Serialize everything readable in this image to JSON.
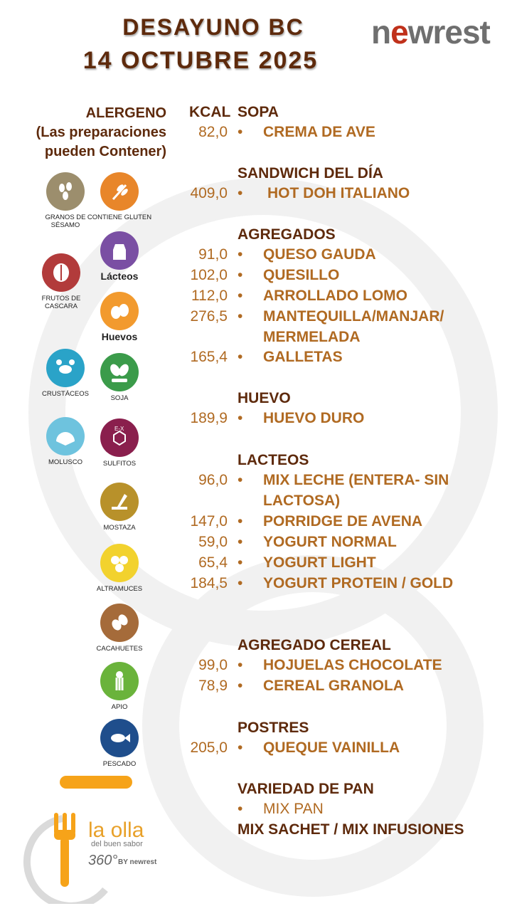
{
  "header": {
    "title_line1": "DESAYUNO  BC",
    "title_line2": "14   OCTUBRE 2025",
    "logo_pre": "n",
    "logo_e": "e",
    "logo_post": "wrest"
  },
  "allergen": {
    "heading1": "ALERGENO",
    "heading2": "(Las preparaciones",
    "heading3": "pueden Contener)",
    "items": [
      {
        "label": "GRANOS DE SÉSAMO",
        "icon": "sesame-icon",
        "color": "#9c8e6d"
      },
      {
        "label": "CONTIENE GLUTEN",
        "icon": "gluten-icon",
        "color": "#e8862a"
      },
      {
        "label": "Lácteos",
        "icon": "milk-icon",
        "color": "#7a4fa3"
      },
      {
        "label": "FRUTOS DE CASCARA",
        "icon": "nuts-icon",
        "color": "#b23b3b"
      },
      {
        "label": "Huevos",
        "icon": "egg-icon",
        "color": "#f29a2e"
      },
      {
        "label": "CRUSTÁCEOS",
        "icon": "crab-icon",
        "color": "#2aa3c8"
      },
      {
        "label": "SOJA",
        "icon": "soy-icon",
        "color": "#3b9b4a"
      },
      {
        "label": "MOLUSCO",
        "icon": "shell-icon",
        "color": "#6ec3de"
      },
      {
        "label": "SULFITOS",
        "icon": "sulfite-icon",
        "color": "#8a1f4d",
        "glyph": "E-X"
      },
      {
        "label": "MOSTAZA",
        "icon": "mustard-icon",
        "color": "#b8912a"
      },
      {
        "label": "ALTRAMUCES",
        "icon": "lupin-icon",
        "color": "#f2d22e"
      },
      {
        "label": "CACAHUETES",
        "icon": "peanut-icon",
        "color": "#a56b3a"
      },
      {
        "label": "APIO",
        "icon": "celery-icon",
        "color": "#6ab33b"
      },
      {
        "label": "PESCADO",
        "icon": "fish-icon",
        "color": "#1f4e8c"
      }
    ]
  },
  "menu": {
    "kcal_header": "KCAL",
    "bullet": "•",
    "sections": [
      {
        "title": "SOPA",
        "items": [
          {
            "kcal": "82,0",
            "name": "CREMA DE AVE"
          }
        ]
      },
      {
        "title": "SANDWICH DEL DÍA",
        "items": [
          {
            "kcal": "409,0",
            "name": "HOT DOH ITALIANO"
          }
        ]
      },
      {
        "title": "AGREGADOS",
        "items": [
          {
            "kcal": "91,0",
            "name": "QUESO  GAUDA"
          },
          {
            "kcal": "102,0",
            "name": "QUESILLO"
          },
          {
            "kcal": "112,0",
            "name": "ARROLLADO LOMO"
          },
          {
            "kcal": "276,5",
            "name": "MANTEQUILLA/MANJAR/ MERMELADA"
          },
          {
            "kcal": "165,4",
            "name": "GALLETAS"
          }
        ]
      },
      {
        "title": "HUEVO",
        "items": [
          {
            "kcal": "189,9",
            "name": "HUEVO DURO"
          }
        ]
      },
      {
        "title": "LACTEOS",
        "items": [
          {
            "kcal": "96,0",
            "name": "MIX LECHE (ENTERA- SIN LACTOSA)"
          },
          {
            "kcal": "147,0",
            "name": "PORRIDGE DE AVENA"
          },
          {
            "kcal": "59,0",
            "name": "YOGURT NORMAL"
          },
          {
            "kcal": "65,4",
            "name": "YOGURT LIGHT"
          },
          {
            "kcal": "184,5",
            "name": "YOGURT PROTEIN / GOLD"
          }
        ]
      },
      {
        "title": "AGREGADO CEREAL",
        "items": [
          {
            "kcal": "99,0",
            "name": "HOJUELAS CHOCOLATE"
          },
          {
            "kcal": "78,9",
            "name": "CEREAL  GRANOLA"
          }
        ]
      },
      {
        "title": "POSTRES",
        "items": [
          {
            "kcal": "205,0",
            "name": "QUEQUE VAINILLA"
          }
        ]
      },
      {
        "title": "VARIEDAD DE PAN",
        "items": [
          {
            "kcal": "",
            "name": "MIX PAN"
          }
        ]
      }
    ],
    "footer_line": "MIX SACHET / MIX INFUSIONES"
  },
  "brand": {
    "line1": "la olla",
    "line2": "del buen sabor",
    "line3": "360°",
    "line4": "BY newrest"
  },
  "colors": {
    "title": "#5e2a0c",
    "item": "#b06a22",
    "accent": "#f6a319",
    "logo_red": "#c0311b"
  }
}
